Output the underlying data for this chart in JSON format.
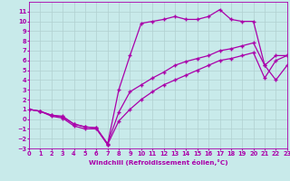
{
  "background_color": "#c8eaea",
  "grid_color": "#b0d0d0",
  "line_color": "#aa00aa",
  "marker": "+",
  "markersize": 3.5,
  "markeredgewidth": 1.0,
  "linewidth": 0.9,
  "xlim": [
    0,
    23
  ],
  "ylim": [
    -3,
    12
  ],
  "xlabel": "Windchill (Refroidissement éolien,°C)",
  "xlabel_fontsize": 5.2,
  "tick_fontsize": 4.8,
  "xticks": [
    0,
    1,
    2,
    3,
    4,
    5,
    6,
    7,
    8,
    9,
    10,
    11,
    12,
    13,
    14,
    15,
    16,
    17,
    18,
    19,
    20,
    21,
    22,
    23
  ],
  "yticks": [
    -3,
    -2,
    -1,
    0,
    1,
    2,
    3,
    4,
    5,
    6,
    7,
    8,
    9,
    10,
    11
  ],
  "line1_x": [
    0,
    1,
    2,
    3,
    4,
    5,
    6,
    7,
    8,
    9,
    10,
    11,
    12,
    13,
    14,
    15,
    16,
    17,
    18,
    19,
    20,
    21,
    22,
    23
  ],
  "line1_y": [
    1.0,
    0.8,
    0.4,
    0.3,
    -0.5,
    -0.8,
    -0.9,
    -2.6,
    3.0,
    6.5,
    9.8,
    10.0,
    10.2,
    10.5,
    10.2,
    10.2,
    10.5,
    11.2,
    10.2,
    10.0,
    10.0,
    5.5,
    4.0,
    5.5
  ],
  "line2_x": [
    0,
    1,
    2,
    3,
    4,
    5,
    6,
    7,
    8,
    9,
    10,
    11,
    12,
    13,
    14,
    15,
    16,
    17,
    18,
    19,
    20,
    21,
    22,
    23
  ],
  "line2_y": [
    1.0,
    0.8,
    0.4,
    0.2,
    -0.5,
    -0.8,
    -0.9,
    -2.5,
    0.7,
    2.8,
    3.5,
    4.2,
    4.8,
    5.5,
    5.9,
    6.2,
    6.5,
    7.0,
    7.2,
    7.5,
    7.8,
    5.5,
    6.5,
    6.5
  ],
  "line3_x": [
    0,
    1,
    2,
    3,
    4,
    5,
    6,
    7,
    8,
    9,
    10,
    11,
    12,
    13,
    14,
    15,
    16,
    17,
    18,
    19,
    20,
    21,
    22,
    23
  ],
  "line3_y": [
    1.0,
    0.8,
    0.3,
    0.1,
    -0.7,
    -1.0,
    -1.0,
    -2.6,
    -0.2,
    1.0,
    2.0,
    2.8,
    3.5,
    4.0,
    4.5,
    5.0,
    5.5,
    6.0,
    6.2,
    6.5,
    6.8,
    4.2,
    6.0,
    6.5
  ]
}
